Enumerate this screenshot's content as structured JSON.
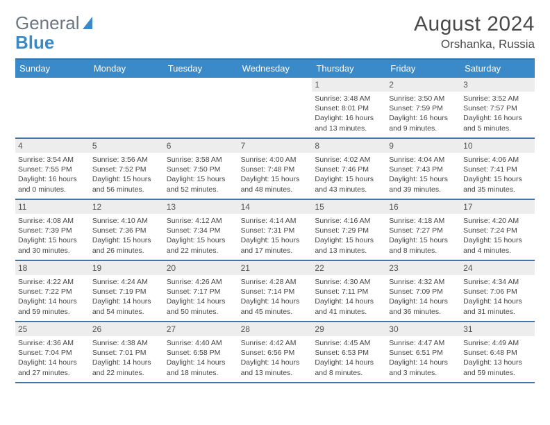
{
  "brand": {
    "part1": "General",
    "part2": "Blue"
  },
  "title": "August 2024",
  "location": "Orshanka, Russia",
  "colors": {
    "accent": "#3a8ac9",
    "rule": "#3a77a8",
    "daynum_bg": "#ededed",
    "text": "#4a4a4a",
    "cell_text": "#444444",
    "logo_gray": "#6c7680"
  },
  "dow": [
    "Sunday",
    "Monday",
    "Tuesday",
    "Wednesday",
    "Thursday",
    "Friday",
    "Saturday"
  ],
  "weeks": [
    [
      null,
      null,
      null,
      null,
      {
        "d": "1",
        "sr": "3:48 AM",
        "ss": "8:01 PM",
        "dl": "16 hours and 13 minutes."
      },
      {
        "d": "2",
        "sr": "3:50 AM",
        "ss": "7:59 PM",
        "dl": "16 hours and 9 minutes."
      },
      {
        "d": "3",
        "sr": "3:52 AM",
        "ss": "7:57 PM",
        "dl": "16 hours and 5 minutes."
      }
    ],
    [
      {
        "d": "4",
        "sr": "3:54 AM",
        "ss": "7:55 PM",
        "dl": "16 hours and 0 minutes."
      },
      {
        "d": "5",
        "sr": "3:56 AM",
        "ss": "7:52 PM",
        "dl": "15 hours and 56 minutes."
      },
      {
        "d": "6",
        "sr": "3:58 AM",
        "ss": "7:50 PM",
        "dl": "15 hours and 52 minutes."
      },
      {
        "d": "7",
        "sr": "4:00 AM",
        "ss": "7:48 PM",
        "dl": "15 hours and 48 minutes."
      },
      {
        "d": "8",
        "sr": "4:02 AM",
        "ss": "7:46 PM",
        "dl": "15 hours and 43 minutes."
      },
      {
        "d": "9",
        "sr": "4:04 AM",
        "ss": "7:43 PM",
        "dl": "15 hours and 39 minutes."
      },
      {
        "d": "10",
        "sr": "4:06 AM",
        "ss": "7:41 PM",
        "dl": "15 hours and 35 minutes."
      }
    ],
    [
      {
        "d": "11",
        "sr": "4:08 AM",
        "ss": "7:39 PM",
        "dl": "15 hours and 30 minutes."
      },
      {
        "d": "12",
        "sr": "4:10 AM",
        "ss": "7:36 PM",
        "dl": "15 hours and 26 minutes."
      },
      {
        "d": "13",
        "sr": "4:12 AM",
        "ss": "7:34 PM",
        "dl": "15 hours and 22 minutes."
      },
      {
        "d": "14",
        "sr": "4:14 AM",
        "ss": "7:31 PM",
        "dl": "15 hours and 17 minutes."
      },
      {
        "d": "15",
        "sr": "4:16 AM",
        "ss": "7:29 PM",
        "dl": "15 hours and 13 minutes."
      },
      {
        "d": "16",
        "sr": "4:18 AM",
        "ss": "7:27 PM",
        "dl": "15 hours and 8 minutes."
      },
      {
        "d": "17",
        "sr": "4:20 AM",
        "ss": "7:24 PM",
        "dl": "15 hours and 4 minutes."
      }
    ],
    [
      {
        "d": "18",
        "sr": "4:22 AM",
        "ss": "7:22 PM",
        "dl": "14 hours and 59 minutes."
      },
      {
        "d": "19",
        "sr": "4:24 AM",
        "ss": "7:19 PM",
        "dl": "14 hours and 54 minutes."
      },
      {
        "d": "20",
        "sr": "4:26 AM",
        "ss": "7:17 PM",
        "dl": "14 hours and 50 minutes."
      },
      {
        "d": "21",
        "sr": "4:28 AM",
        "ss": "7:14 PM",
        "dl": "14 hours and 45 minutes."
      },
      {
        "d": "22",
        "sr": "4:30 AM",
        "ss": "7:11 PM",
        "dl": "14 hours and 41 minutes."
      },
      {
        "d": "23",
        "sr": "4:32 AM",
        "ss": "7:09 PM",
        "dl": "14 hours and 36 minutes."
      },
      {
        "d": "24",
        "sr": "4:34 AM",
        "ss": "7:06 PM",
        "dl": "14 hours and 31 minutes."
      }
    ],
    [
      {
        "d": "25",
        "sr": "4:36 AM",
        "ss": "7:04 PM",
        "dl": "14 hours and 27 minutes."
      },
      {
        "d": "26",
        "sr": "4:38 AM",
        "ss": "7:01 PM",
        "dl": "14 hours and 22 minutes."
      },
      {
        "d": "27",
        "sr": "4:40 AM",
        "ss": "6:58 PM",
        "dl": "14 hours and 18 minutes."
      },
      {
        "d": "28",
        "sr": "4:42 AM",
        "ss": "6:56 PM",
        "dl": "14 hours and 13 minutes."
      },
      {
        "d": "29",
        "sr": "4:45 AM",
        "ss": "6:53 PM",
        "dl": "14 hours and 8 minutes."
      },
      {
        "d": "30",
        "sr": "4:47 AM",
        "ss": "6:51 PM",
        "dl": "14 hours and 3 minutes."
      },
      {
        "d": "31",
        "sr": "4:49 AM",
        "ss": "6:48 PM",
        "dl": "13 hours and 59 minutes."
      }
    ]
  ],
  "labels": {
    "sunrise": "Sunrise:",
    "sunset": "Sunset:",
    "daylight": "Daylight:"
  }
}
